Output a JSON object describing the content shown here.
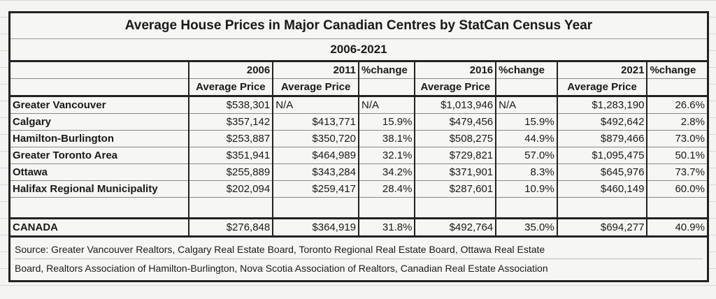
{
  "title": "Average House Prices in Major Canadian Centres by StatCan Census Year",
  "subtitle": "2006-2021",
  "header_years": [
    "",
    "2006",
    "2011",
    "%change",
    "2016",
    "%change",
    "2021",
    "%change"
  ],
  "header_sub": [
    "",
    "Average Price",
    "Average Price",
    "",
    "Average Price",
    "",
    "Average Price",
    ""
  ],
  "rows": [
    [
      "Greater Vancouver",
      "$538,301",
      "N/A",
      "N/A",
      "$1,013,946",
      "N/A",
      "$1,283,190",
      "26.6%"
    ],
    [
      "Calgary",
      "$357,142",
      "$413,771",
      "15.9%",
      "$479,456",
      "15.9%",
      "$492,642",
      "2.8%"
    ],
    [
      "Hamilton-Burlington",
      "$253,887",
      "$350,720",
      "38.1%",
      "$508,275",
      "44.9%",
      "$879,466",
      "73.0%"
    ],
    [
      "Greater Toronto Area",
      "$351,941",
      "$464,989",
      "32.1%",
      "$729,821",
      "57.0%",
      "$1,095,475",
      "50.1%"
    ],
    [
      "Ottawa",
      "$255,889",
      "$343,284",
      "34.2%",
      "$371,901",
      "8.3%",
      "$645,976",
      "73.7%"
    ],
    [
      "Halifax Regional Municipality",
      "$202,094",
      "$259,417",
      "28.4%",
      "$287,601",
      "10.9%",
      "$460,149",
      "60.0%"
    ]
  ],
  "canada": [
    "CANADA",
    "$276,848",
    "$364,919",
    "31.8%",
    "$492,764",
    "35.0%",
    "$694,277",
    "40.9%"
  ],
  "source_lines": [
    "Source: Greater Vancouver Realtors, Calgary Real Estate Board, Toronto Regional Real Estate Board, Ottawa Real Estate",
    " Board, Realtors Association of Hamilton-Burlington, Nova Scotia Association of Realtors, Canadian Real Estate Association"
  ]
}
